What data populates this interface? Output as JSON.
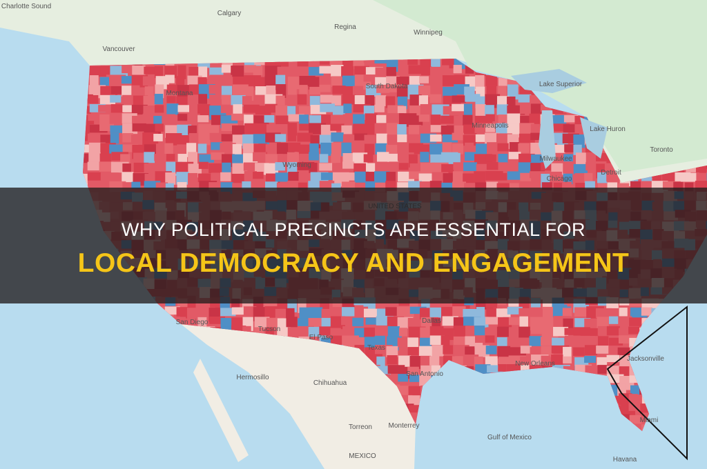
{
  "title": {
    "line1": "WHY POLITICAL PRECINCTS ARE ESSENTIAL FOR",
    "line2": "LOCAL DEMOCRACY AND ENGAGEMENT"
  },
  "map_labels": [
    "Charlotte Sound",
    "Calgary",
    "Regina",
    "Winnipeg",
    "Vancouver",
    "Montana",
    "South Dakota",
    "Wyoming",
    "Lake Superior",
    "Lake Huron",
    "Minneapolis",
    "Toronto",
    "Milwaukee",
    "Detroit",
    "Chicago",
    "UNITED STATES",
    "San Diego",
    "Tucson",
    "El Paso",
    "Dallas",
    "Texas",
    "San Antonio",
    "New Orleans",
    "Jacksonville",
    "Miami",
    "Hermosillo",
    "Chihuahua",
    "Monterrey",
    "Torreon",
    "MEXICO",
    "Gulf of Mexico",
    "Havana"
  ]
}
